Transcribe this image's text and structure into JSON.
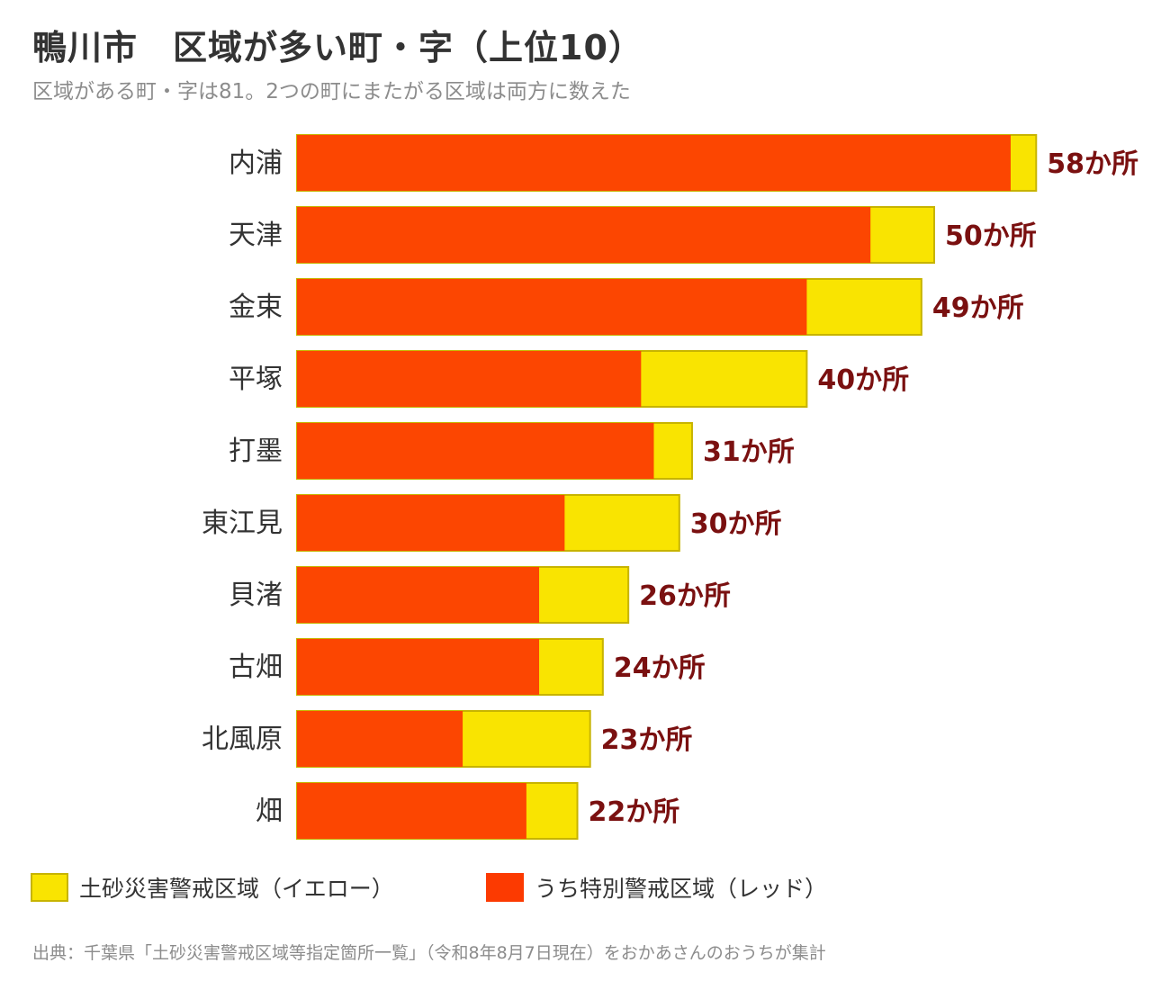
{
  "header": {
    "title": "鴨川市　区域が多い町・字（上位10）",
    "subtitle": "区域がある町・字は81。2つの町にまたがる区域は両方に数えた"
  },
  "chart_data": {
    "type": "bar",
    "orientation": "horizontal",
    "stacked": true,
    "categories": [
      "内浦",
      "天津",
      "金束",
      "平塚",
      "打墨",
      "東江見",
      "貝渚",
      "古畑",
      "北風原",
      "畑"
    ],
    "series": [
      {
        "name": "うち特別警戒区域（レッド）",
        "values": [
          56,
          45,
          40,
          27,
          28,
          21,
          19,
          19,
          13,
          18
        ]
      },
      {
        "name": "土砂災害警戒区域（イエロー）",
        "values": [
          2,
          5,
          9,
          13,
          3,
          9,
          7,
          5,
          10,
          4
        ]
      }
    ],
    "totals": [
      58,
      50,
      49,
      40,
      31,
      30,
      26,
      24,
      23,
      22
    ],
    "total_labels": [
      "58か所",
      "50か所",
      "49か所",
      "40か所",
      "31か所",
      "30か所",
      "26か所",
      "24か所",
      "23か所",
      "22か所"
    ],
    "xlim": [
      0,
      58
    ],
    "grid": false,
    "legend_position": "bottom",
    "colors": {
      "red": "#fc4601",
      "yellow": "#f9e401",
      "yellow_border": "#c7b400",
      "label": "#7a1010"
    }
  },
  "legend": {
    "yellow_label": "土砂災害警戒区域（イエロー）",
    "red_label": "うち特別警戒区域（レッド）"
  },
  "footer": {
    "source": "出典：千葉県「土砂災害警戒区域等指定箇所一覧」（令和8年8月7日現在）をおかあさんのおうちが集計"
  }
}
